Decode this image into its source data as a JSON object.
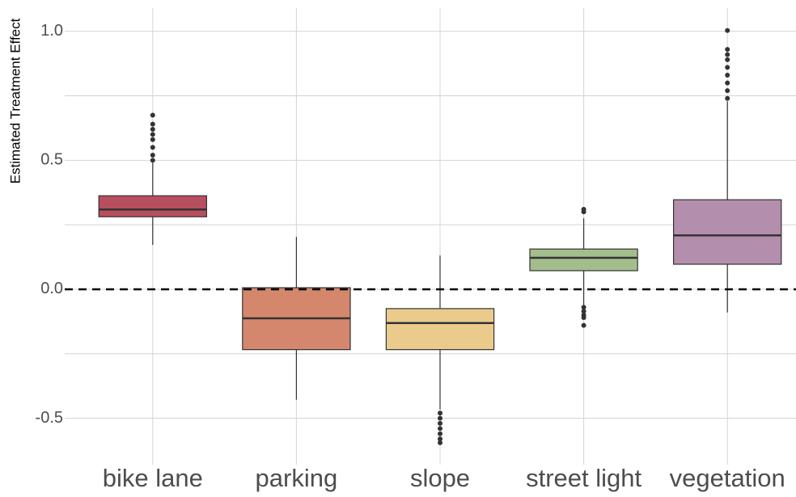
{
  "chart_data": {
    "type": "box",
    "y_label": "Estimated Treatment Effect",
    "categories": [
      "bike lane",
      "parking",
      "slope",
      "street light",
      "vegetation"
    ],
    "boxes": [
      {
        "color": "#b84f5e",
        "q1": 0.281,
        "median": 0.309,
        "q3": 0.3625,
        "whisker_low": 0.172,
        "whisker_high": 0.49,
        "outliers": [
          0.5,
          0.52,
          0.55,
          0.58,
          0.6,
          0.62,
          0.64,
          0.675
        ]
      },
      {
        "color": "#d4876c",
        "q1": -0.234,
        "median": -0.1125,
        "q3": 0.006,
        "whisker_low": -0.428,
        "whisker_high": 0.203,
        "outliers": []
      },
      {
        "color": "#ebcb8b",
        "q1": -0.234,
        "median": -0.131,
        "q3": -0.075,
        "whisker_low": -0.466,
        "whisker_high": 0.131,
        "outliers": [
          -0.48,
          -0.5,
          -0.52,
          -0.54,
          -0.56,
          -0.58,
          -0.595
        ]
      },
      {
        "color": "#a3be8c",
        "q1": 0.072,
        "median": 0.122,
        "q3": 0.156,
        "whisker_low": -0.0625,
        "whisker_high": 0.275,
        "outliers": [
          0.3,
          0.31,
          -0.07,
          -0.085,
          -0.1,
          -0.11,
          -0.14
        ]
      },
      {
        "color": "#b48ead",
        "q1": 0.097,
        "median": 0.209,
        "q3": 0.347,
        "whisker_low": -0.09,
        "whisker_high": 0.728,
        "outliers": [
          0.74,
          0.77,
          0.8,
          0.83,
          0.86,
          0.89,
          0.91,
          0.93,
          1.003
        ]
      }
    ],
    "ylim": [
      -0.68,
      1.09
    ],
    "yticks": [
      {
        "value": -0.5,
        "label": "-0.5"
      },
      {
        "value": 0,
        "label": "0.0"
      },
      {
        "value": 0.5,
        "label": "0.5"
      },
      {
        "value": 1,
        "label": "1.0"
      }
    ],
    "minor_yticks": [
      -0.25,
      0.25,
      0.75
    ],
    "reference_line": 0,
    "grid": true
  }
}
